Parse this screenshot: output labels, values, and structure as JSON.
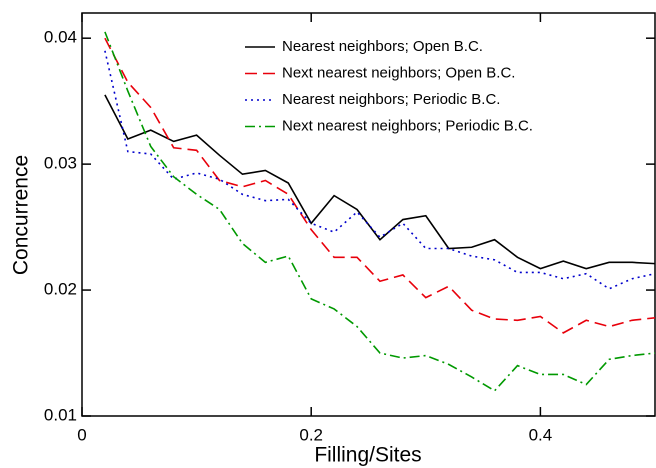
{
  "chart_data": {
    "type": "line",
    "xlabel": "Filling/Sites",
    "ylabel": "Concurrence",
    "xlim": [
      0,
      0.5
    ],
    "ylim": [
      0.01,
      0.042
    ],
    "xticks": [
      0,
      0.2,
      0.4
    ],
    "yticks": [
      0.01,
      0.02,
      0.03,
      0.04
    ],
    "legend": "upper right",
    "x": [
      0.02,
      0.04,
      0.06,
      0.08,
      0.1,
      0.12,
      0.14,
      0.16,
      0.18,
      0.2,
      0.22,
      0.24,
      0.26,
      0.28,
      0.3,
      0.32,
      0.34,
      0.36,
      0.38,
      0.4,
      0.42,
      0.44,
      0.46,
      0.48,
      0.5
    ],
    "series": [
      {
        "name": "Nearest neighbors; Open B.C.",
        "color": "#000000",
        "dash": "solid",
        "values": [
          0.0355,
          0.032,
          0.0327,
          0.0318,
          0.0323,
          0.0307,
          0.0292,
          0.0295,
          0.0285,
          0.0253,
          0.0275,
          0.0264,
          0.024,
          0.0256,
          0.0259,
          0.0233,
          0.0234,
          0.024,
          0.0226,
          0.0217,
          0.0223,
          0.0217,
          0.0222,
          0.0222,
          0.0221
        ]
      },
      {
        "name": "Next nearest neighbors; Open B.C.",
        "color": "#e8000b",
        "dash": "dashed",
        "values": [
          0.04,
          0.0365,
          0.0345,
          0.0313,
          0.0311,
          0.0287,
          0.0282,
          0.0287,
          0.0276,
          0.0248,
          0.0226,
          0.0226,
          0.0207,
          0.0212,
          0.0194,
          0.0203,
          0.0184,
          0.0177,
          0.0176,
          0.0179,
          0.0166,
          0.0176,
          0.0171,
          0.0176,
          0.0178
        ]
      },
      {
        "name": "Nearest neighbors; Periodic B.C.",
        "color": "#0000cc",
        "dash": "dotted",
        "values": [
          0.039,
          0.031,
          0.0308,
          0.0288,
          0.0293,
          0.0288,
          0.0276,
          0.0271,
          0.0272,
          0.0253,
          0.0246,
          0.0262,
          0.0242,
          0.0253,
          0.0233,
          0.0233,
          0.0227,
          0.0224,
          0.0214,
          0.0214,
          0.0209,
          0.0213,
          0.0201,
          0.0209,
          0.0213
        ]
      },
      {
        "name": "Next nearest neighbors; Periodic B.C.",
        "color": "#009900",
        "dash": "dashdot",
        "values": [
          0.0405,
          0.0358,
          0.0314,
          0.029,
          0.0276,
          0.0264,
          0.0237,
          0.0222,
          0.0227,
          0.0193,
          0.0185,
          0.0171,
          0.015,
          0.0146,
          0.0148,
          0.0141,
          0.0131,
          0.012,
          0.014,
          0.0133,
          0.0133,
          0.0125,
          0.0145,
          0.0148,
          0.015
        ]
      }
    ]
  }
}
